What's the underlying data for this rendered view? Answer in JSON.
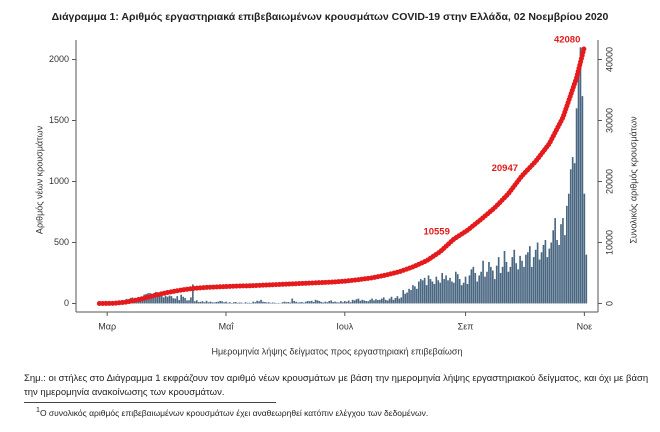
{
  "chart_data": {
    "type": "combo",
    "title": "Διάγραμμα 1: Αριθμός εργαστηριακά επιβεβαιωμένων κρουσμάτων COVID-19 στην Ελλάδα, 02 Νοεμβρίου 2020",
    "ylabel": "Αριθμός νέων κρουσμάτων",
    "y2label": "Συνολικός αριθμός κρουσμάτων",
    "xlabel": "Ημερομηνία λήψης δείγματος προς εργαστηριακή επιβεβαίωση",
    "xlim": [
      -12,
      256
    ],
    "xticks": [
      {
        "value": 4,
        "label": "Μαρ"
      },
      {
        "value": 65,
        "label": "Μαΐ"
      },
      {
        "value": 126,
        "label": "Ιουλ"
      },
      {
        "value": 188,
        "label": "Σεπ"
      },
      {
        "value": 249,
        "label": "Νοε"
      }
    ],
    "ylim": [
      -70,
      2160
    ],
    "yticks": [
      0,
      500,
      1000,
      1500,
      2000
    ],
    "y2lim": [
      -1400,
      43200
    ],
    "y2ticks": [
      0,
      10000,
      20000,
      30000,
      40000
    ],
    "series": [
      {
        "type": "bar",
        "color": "#4a6782",
        "x": [
          0,
          1,
          2,
          3,
          4,
          5,
          6,
          7,
          8,
          9,
          10,
          11,
          12,
          13,
          14,
          15,
          16,
          17,
          18,
          19,
          20,
          21,
          22,
          23,
          24,
          25,
          26,
          27,
          28,
          29,
          30,
          31,
          32,
          33,
          34,
          35,
          36,
          37,
          38,
          39,
          40,
          41,
          42,
          43,
          44,
          45,
          46,
          47,
          48,
          49,
          50,
          51,
          52,
          53,
          54,
          55,
          56,
          57,
          58,
          59,
          60,
          61,
          62,
          63,
          64,
          65,
          66,
          67,
          68,
          69,
          70,
          71,
          72,
          73,
          74,
          75,
          76,
          77,
          78,
          79,
          80,
          81,
          82,
          83,
          84,
          85,
          86,
          87,
          88,
          89,
          90,
          91,
          92,
          93,
          94,
          95,
          96,
          97,
          98,
          99,
          100,
          101,
          102,
          103,
          104,
          105,
          106,
          107,
          108,
          109,
          110,
          111,
          112,
          113,
          114,
          115,
          116,
          117,
          118,
          119,
          120,
          121,
          122,
          123,
          124,
          125,
          126,
          127,
          128,
          129,
          130,
          131,
          132,
          133,
          134,
          135,
          136,
          137,
          138,
          139,
          140,
          141,
          142,
          143,
          144,
          145,
          146,
          147,
          148,
          149,
          150,
          151,
          152,
          153,
          154,
          155,
          156,
          157,
          158,
          159,
          160,
          161,
          162,
          163,
          164,
          165,
          166,
          167,
          168,
          169,
          170,
          171,
          172,
          173,
          174,
          175,
          176,
          177,
          178,
          179,
          180,
          181,
          182,
          183,
          184,
          185,
          186,
          187,
          188,
          189,
          190,
          191,
          192,
          193,
          194,
          195,
          196,
          197,
          198,
          199,
          200,
          201,
          202,
          203,
          204,
          205,
          206,
          207,
          208,
          209,
          210,
          211,
          212,
          213,
          214,
          215,
          216,
          217,
          218,
          219,
          220,
          221,
          222,
          223,
          224,
          225,
          226,
          227,
          228,
          229,
          230,
          231,
          232,
          233,
          234,
          235,
          236,
          237,
          238,
          239,
          240,
          241,
          242,
          243,
          244,
          245,
          246,
          247,
          248,
          249,
          250
        ],
        "values": [
          1,
          0,
          1,
          0,
          2,
          0,
          0,
          3,
          7,
          14,
          9,
          19,
          28,
          24,
          38,
          12,
          46,
          49,
          40,
          43,
          53,
          46,
          31,
          72,
          78,
          84,
          85,
          56,
          66,
          95,
          58,
          77,
          70,
          50,
          63,
          55,
          65,
          60,
          43,
          40,
          60,
          28,
          72,
          55,
          45,
          25,
          26,
          50,
          156,
          18,
          26,
          12,
          14,
          18,
          10,
          22,
          10,
          15,
          10,
          8,
          12,
          14,
          20,
          18,
          10,
          15,
          6,
          10,
          4,
          10,
          12,
          5,
          8,
          7,
          2,
          10,
          5,
          6,
          4,
          15,
          10,
          22,
          18,
          30,
          14,
          12,
          8,
          10,
          5,
          8,
          6,
          3,
          4,
          2,
          10,
          15,
          10,
          12,
          8,
          40,
          20,
          14,
          8,
          10,
          12,
          6,
          15,
          20,
          18,
          22,
          12,
          30,
          25,
          20,
          12,
          8,
          15,
          10,
          20,
          25,
          12,
          15,
          10,
          8,
          20,
          10,
          20,
          14,
          24,
          10,
          30,
          25,
          35,
          40,
          22,
          30,
          25,
          20,
          18,
          30,
          40,
          25,
          35,
          28,
          30,
          40,
          50,
          30,
          25,
          40,
          55,
          30,
          45,
          60,
          40,
          50,
          110,
          80,
          90,
          120,
          110,
          150,
          140,
          120,
          180,
          200,
          190,
          210,
          150,
          230,
          200,
          180,
          160,
          220,
          190,
          170,
          250,
          200,
          230,
          190,
          210,
          180,
          170,
          260,
          240,
          200,
          150,
          170,
          220,
          160,
          230,
          280,
          300,
          250,
          180,
          230,
          260,
          350,
          220,
          260,
          340,
          300,
          270,
          200,
          310,
          380,
          250,
          300,
          430,
          340,
          260,
          300,
          380,
          440,
          330,
          280,
          390,
          350,
          300,
          400,
          420,
          470,
          300,
          380,
          440,
          500,
          360,
          420,
          480,
          520,
          380,
          450,
          500,
          600,
          700,
          520,
          480,
          650,
          700,
          560,
          800,
          900,
          1100,
          1200,
          1150,
          1600,
          1900,
          2100,
          1700,
          900,
          400
        ]
      },
      {
        "type": "line",
        "axis": "y2",
        "color": "#e41a1c",
        "x": [
          0,
          7,
          14,
          21,
          28,
          35,
          42,
          49,
          56,
          63,
          70,
          77,
          84,
          91,
          98,
          105,
          112,
          119,
          126,
          133,
          140,
          147,
          154,
          161,
          168,
          175,
          182,
          189,
          196,
          203,
          210,
          217,
          224,
          231,
          238,
          245,
          249
        ],
        "values": [
          2,
          10,
          230,
          700,
          1300,
          1800,
          2200,
          2500,
          2650,
          2750,
          2850,
          2900,
          3000,
          3100,
          3200,
          3300,
          3400,
          3500,
          3650,
          3900,
          4200,
          4650,
          5200,
          6000,
          7000,
          8500,
          10559,
          12000,
          13800,
          15700,
          18000,
          20947,
          23300,
          26200,
          30500,
          37000,
          42080
        ]
      }
    ],
    "annotations": [
      {
        "x": 182,
        "value": 10559
      },
      {
        "x": 217,
        "value": 20947
      },
      {
        "x": 249,
        "value": 42080
      }
    ]
  },
  "note": "Σημ.: οι στήλες στο Διάγραμμα 1 εκφράζουν τον αριθμό νέων κρουσμάτων με βάση την ημερομηνία λήψης εργαστηριακού δείγματος, και όχι με βάση την ημερομηνία ανακοίνωσης των κρουσμάτων.",
  "footnote": {
    "marker": "1",
    "text": "Ο συνολικός αριθμός επιβεβαιωμένων κρουσμάτων έχει αναθεωρηθεί κατόπιν ελέγχου των δεδομένων."
  }
}
